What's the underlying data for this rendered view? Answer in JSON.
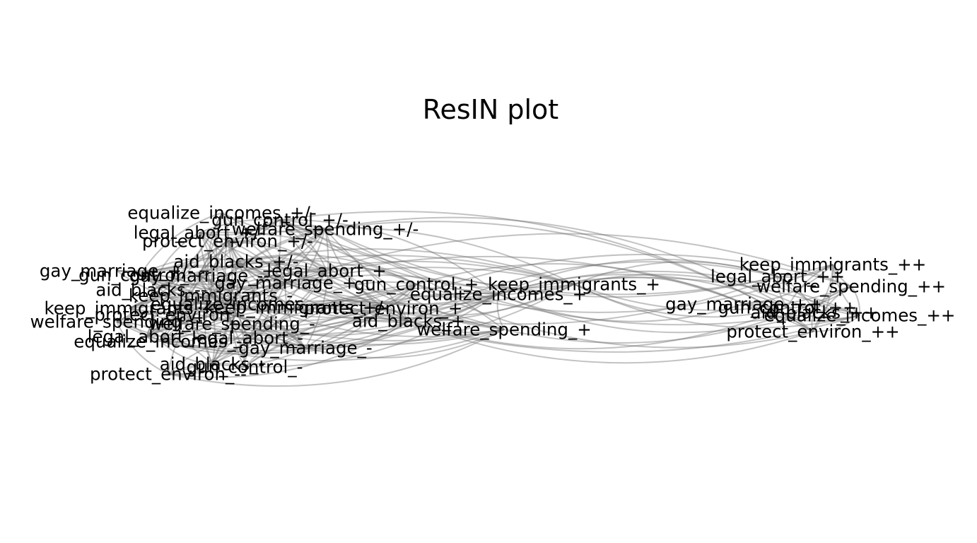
{
  "plot": {
    "title": "ResIN plot",
    "edge_color": "#6e6e6e",
    "text_color": "#000000",
    "background": "#ffffff"
  },
  "nodes": [
    {
      "id": "equalize_incomes_pm",
      "label": "equalize_incomes_+/-"
    },
    {
      "id": "gun_control_pm",
      "label": "gun_control_+/-"
    },
    {
      "id": "legal_abort_pm",
      "label": "legal_abort_+/-"
    },
    {
      "id": "welfare_spending_pm",
      "label": "welfare_spending_+/-"
    },
    {
      "id": "protect_environ_pm",
      "label": "protect_environ_+/-"
    },
    {
      "id": "aid_blacks_pm",
      "label": "aid_blacks_+/-"
    },
    {
      "id": "gay_marriage_pm",
      "label": "gay_marriage_+/-"
    },
    {
      "id": "gun_control_mm",
      "label": "gun_control_--"
    },
    {
      "id": "gay_marriage_mm",
      "label": "gay_marriage_--"
    },
    {
      "id": "legal_abort_p",
      "label": "legal_abort_+"
    },
    {
      "id": "aid_blacks_mm",
      "label": "aid_blacks_--"
    },
    {
      "id": "gay_marriage_p",
      "label": "gay_marriage_+"
    },
    {
      "id": "gun_control_p",
      "label": "gun_control_+"
    },
    {
      "id": "keep_immigrants_p",
      "label": "keep_immigrants_+"
    },
    {
      "id": "keep_immigrants_m",
      "label": "keep_immigrants_-"
    },
    {
      "id": "equalize_incomes_p",
      "label": "equalize_incomes_+"
    },
    {
      "id": "keep_immigrants_mm",
      "label": "keep_immigrants_--"
    },
    {
      "id": "equalize_incomes_m",
      "label": "equalize_incomes_-"
    },
    {
      "id": "protect_environ_p",
      "label": "protect_environ_+"
    },
    {
      "id": "protect_environ_m",
      "label": "protect_environ_-"
    },
    {
      "id": "keep_immigrants_pm",
      "label": "keep_immigrants_+/-"
    },
    {
      "id": "welfare_spending_mm",
      "label": "welfare_spending_--"
    },
    {
      "id": "welfare_spending_m",
      "label": "welfare_spending_-"
    },
    {
      "id": "aid_blacks_p",
      "label": "aid_blacks_+"
    },
    {
      "id": "welfare_spending_p",
      "label": "welfare_spending_+"
    },
    {
      "id": "legal_abort_mm",
      "label": "legal_abort_--"
    },
    {
      "id": "legal_abort_m",
      "label": "legal_abort_-"
    },
    {
      "id": "equalize_incomes_mm",
      "label": "equalize_incomes_--"
    },
    {
      "id": "gay_marriage_m",
      "label": "gay_marriage_-"
    },
    {
      "id": "aid_blacks_m",
      "label": "aid_blacks_-"
    },
    {
      "id": "gun_control_m",
      "label": "gun_control_-"
    },
    {
      "id": "protect_environ_mm",
      "label": "protect_environ_--"
    },
    {
      "id": "keep_immigrants_pp",
      "label": "keep_immigrants_++"
    },
    {
      "id": "legal_abort_pp",
      "label": "legal_abort_++"
    },
    {
      "id": "welfare_spending_pp",
      "label": "welfare_spending_++"
    },
    {
      "id": "gay_marriage_pp",
      "label": "gay_marriage_++"
    },
    {
      "id": "gun_control_pp",
      "label": "gun_control_++"
    },
    {
      "id": "aid_blacks_pp",
      "label": "aid_blacks_++"
    },
    {
      "id": "equalize_incomes_pp",
      "label": "equalize_incomes_++"
    },
    {
      "id": "protect_environ_pp",
      "label": "protect_environ_++"
    }
  ]
}
